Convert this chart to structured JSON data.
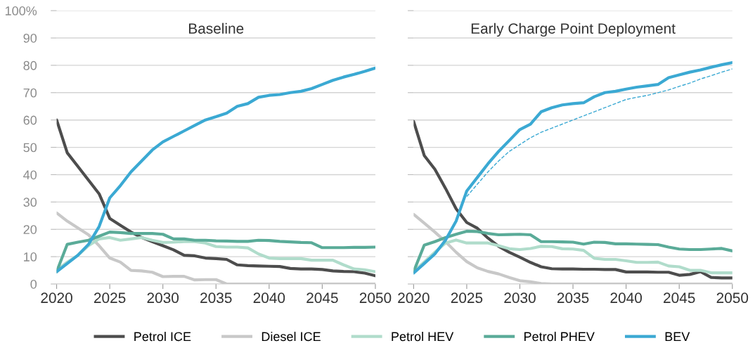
{
  "chart_data": [
    {
      "type": "line",
      "title": "Baseline",
      "x": [
        2020,
        2021,
        2022,
        2023,
        2024,
        2025,
        2026,
        2027,
        2028,
        2029,
        2030,
        2031,
        2032,
        2033,
        2034,
        2035,
        2036,
        2037,
        2038,
        2039,
        2040,
        2041,
        2042,
        2043,
        2044,
        2045,
        2046,
        2047,
        2048,
        2049,
        2050
      ],
      "xlim": [
        2020,
        2050
      ],
      "xticks": [
        2020,
        2025,
        2030,
        2035,
        2040,
        2045,
        2050
      ],
      "ylim": [
        0,
        100
      ],
      "yticks": [
        0,
        10,
        20,
        30,
        40,
        50,
        60,
        70,
        80,
        90,
        {
          "value": 100,
          "label": "100%"
        }
      ],
      "grid": "y",
      "legend": "bottom",
      "line_style": "solid",
      "series": [
        {
          "name": "Petrol ICE",
          "color": "#4d4d4d",
          "values": [
            60,
            48,
            43,
            38,
            33,
            24,
            21.5,
            19,
            17,
            15.5,
            14,
            12.5,
            10.5,
            10.3,
            9.5,
            9.3,
            9,
            7,
            6.7,
            6.6,
            6.5,
            6.4,
            5.7,
            5.5,
            5.5,
            5.3,
            4.8,
            4.6,
            4.5,
            4,
            3
          ]
        },
        {
          "name": "Diesel ICE",
          "color": "#c8c8c8",
          "values": [
            26,
            23,
            20.5,
            18,
            14,
            9.5,
            8,
            5,
            4.8,
            4.3,
            2.7,
            2.8,
            2.8,
            1.5,
            1.6,
            1.6,
            0,
            0,
            0,
            0,
            0,
            0,
            0,
            0,
            0,
            0,
            0,
            0,
            0,
            0,
            0
          ]
        },
        {
          "name": "Petrol HEV",
          "color": "#b0dccb",
          "values": [
            5,
            8,
            10.5,
            14,
            16.5,
            17,
            16,
            16.5,
            17,
            16,
            15.2,
            15.3,
            15.5,
            15.5,
            15,
            13.7,
            13.5,
            13.5,
            13.2,
            11,
            9.5,
            9.3,
            9.3,
            9.3,
            8.7,
            8.7,
            8.7,
            7,
            5.5,
            5.2,
            4.5
          ]
        },
        {
          "name": "Petrol PHEV",
          "color": "#5aab98",
          "values": [
            4.5,
            14.5,
            15.3,
            16,
            17.5,
            19,
            18.8,
            18.5,
            18.5,
            18.5,
            18.2,
            16.5,
            16.5,
            16,
            16,
            15.8,
            15.7,
            15.6,
            15.6,
            16,
            15.9,
            15.6,
            15.4,
            15.2,
            15.1,
            13.3,
            13.3,
            13.3,
            13.4,
            13.4,
            13.5
          ]
        },
        {
          "name": "BEV",
          "color": "#3ba9d3",
          "values": [
            4.5,
            7.5,
            10.5,
            14.5,
            21,
            31.5,
            36,
            41,
            45,
            49,
            52,
            54,
            56,
            58,
            60,
            61.2,
            62.5,
            65,
            66,
            68.3,
            69,
            69.3,
            70,
            70.5,
            71.5,
            73,
            74.5,
            75.7,
            76.7,
            77.8,
            79
          ]
        }
      ]
    },
    {
      "type": "line",
      "title": "Early Charge Point Deployment",
      "x": [
        2020,
        2021,
        2022,
        2023,
        2024,
        2025,
        2026,
        2027,
        2028,
        2029,
        2030,
        2031,
        2032,
        2033,
        2034,
        2035,
        2036,
        2037,
        2038,
        2039,
        2040,
        2041,
        2042,
        2043,
        2044,
        2045,
        2046,
        2047,
        2048,
        2049,
        2050
      ],
      "xlim": [
        2020,
        2050
      ],
      "xticks": [
        2020,
        2025,
        2030,
        2035,
        2040,
        2045,
        2050
      ],
      "ylim": [
        0,
        100
      ],
      "yticks": [
        0,
        10,
        20,
        30,
        40,
        50,
        60,
        70,
        80,
        90,
        100
      ],
      "grid": "y",
      "tick_labels": "x",
      "line_style": "solid",
      "series": [
        {
          "name": "Petrol ICE",
          "color": "#4d4d4d",
          "values": [
            59.5,
            47,
            42,
            35,
            27.5,
            22.5,
            20.4,
            16.8,
            13.8,
            11.6,
            9.8,
            7.9,
            6.3,
            5.6,
            5.5,
            5.5,
            5.4,
            5.4,
            5.3,
            5.3,
            4.4,
            4.4,
            4.4,
            4.3,
            4.3,
            3.2,
            3.5,
            4.5,
            2.4,
            2.2,
            2.2
          ]
        },
        {
          "name": "Diesel ICE",
          "color": "#c8c8c8",
          "values": [
            25.5,
            22.3,
            19,
            15.5,
            11.6,
            8.2,
            5.9,
            4.6,
            3.7,
            2.4,
            1.2,
            0.8,
            0.2,
            0,
            0,
            0,
            0,
            0,
            0,
            0,
            0,
            0,
            0,
            0,
            0,
            0,
            0,
            0,
            0,
            0,
            0
          ]
        },
        {
          "name": "Petrol HEV",
          "color": "#b0dccb",
          "values": [
            4.5,
            8,
            11.6,
            15,
            16.1,
            15,
            15,
            15,
            14,
            12.9,
            12.6,
            13,
            13.8,
            13.7,
            12.9,
            12.8,
            12.3,
            9.4,
            9,
            9,
            8.5,
            7.9,
            7.9,
            8,
            6.6,
            6.3,
            5,
            5,
            4.1,
            4.1,
            4.1
          ]
        },
        {
          "name": "Petrol PHEV",
          "color": "#5aab98",
          "values": [
            4.5,
            14.2,
            15.5,
            17,
            18.2,
            19.3,
            19.2,
            18.5,
            18,
            18.1,
            18.2,
            18,
            15.5,
            15.5,
            15.4,
            15.3,
            14.6,
            15.3,
            15.2,
            14.7,
            14.7,
            14.6,
            14.5,
            14.4,
            13.5,
            12.8,
            12.6,
            12.6,
            12.8,
            13,
            12.1
          ]
        },
        {
          "name": "BEV",
          "color": "#3ba9d3",
          "values": [
            4,
            7.5,
            11,
            16,
            23,
            34,
            39,
            44,
            48.5,
            52.5,
            56.5,
            58.5,
            63,
            64.5,
            65.5,
            66,
            66.3,
            68.5,
            70,
            70.5,
            71.3,
            72,
            72.5,
            73,
            75.5,
            76.5,
            77.5,
            78.3,
            79.3,
            80.2,
            81
          ]
        },
        {
          "color": "#3ba9d3",
          "line_style": "dashed",
          "x": [
            2025,
            2026,
            2027,
            2028,
            2029,
            2030,
            2031,
            2032,
            2033,
            2034,
            2035,
            2036,
            2037,
            2038,
            2039,
            2040,
            2041,
            2042,
            2043,
            2044,
            2045,
            2046,
            2047,
            2048,
            2049,
            2050
          ],
          "values": [
            32,
            36.5,
            41,
            45,
            48.5,
            51,
            53.5,
            55.5,
            57,
            58.5,
            60,
            61.5,
            63,
            64.5,
            66,
            67.5,
            68.3,
            69,
            70,
            71,
            72.3,
            73.5,
            75,
            76.2,
            77.5,
            78.7
          ]
        }
      ]
    }
  ]
}
